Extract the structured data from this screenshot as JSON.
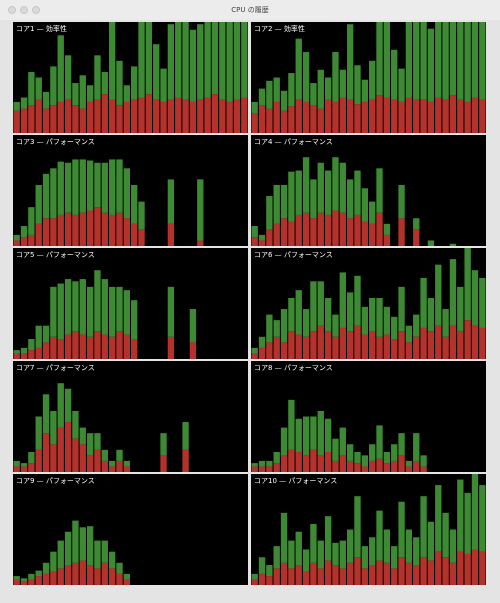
{
  "window": {
    "title": "CPU の履歴"
  },
  "colors": {
    "system": "#b3322b",
    "user": "#3e8a34"
  },
  "ylim": [
    0,
    100
  ],
  "panels": [
    {
      "title": "コア1 — 効率性",
      "system": [
        20,
        22,
        25,
        30,
        22,
        25,
        28,
        30,
        25,
        22,
        28,
        30,
        35,
        30,
        25,
        28,
        30,
        32,
        35,
        30,
        28,
        30,
        32,
        30,
        28,
        30,
        32,
        35,
        30,
        28,
        30,
        32
      ],
      "user": [
        8,
        10,
        30,
        20,
        15,
        35,
        60,
        40,
        20,
        30,
        15,
        40,
        20,
        70,
        40,
        15,
        30,
        68,
        65,
        50,
        30,
        68,
        68,
        70,
        65,
        68,
        68,
        65,
        70,
        72,
        70,
        68
      ]
    },
    {
      "title": "コア2 — 効率性",
      "system": [
        18,
        25,
        22,
        28,
        20,
        24,
        30,
        28,
        25,
        22,
        30,
        28,
        32,
        30,
        26,
        28,
        30,
        34,
        32,
        30,
        28,
        32,
        30,
        30,
        28,
        32,
        30,
        34,
        30,
        28,
        32,
        30
      ],
      "user": [
        10,
        15,
        25,
        22,
        18,
        30,
        55,
        45,
        20,
        35,
        20,
        45,
        25,
        68,
        35,
        20,
        35,
        66,
        68,
        45,
        30,
        68,
        70,
        70,
        66,
        68,
        70,
        66,
        70,
        72,
        68,
        70
      ]
    },
    {
      "title": "コア3 — パフォーマンス",
      "system": [
        5,
        8,
        10,
        20,
        25,
        25,
        28,
        30,
        28,
        30,
        32,
        35,
        30,
        28,
        30,
        25,
        20,
        15,
        0,
        0,
        0,
        20,
        0,
        0,
        0,
        5,
        0,
        0,
        0,
        0,
        0,
        0
      ],
      "user": [
        5,
        10,
        25,
        35,
        40,
        45,
        48,
        45,
        50,
        48,
        45,
        40,
        45,
        50,
        48,
        45,
        35,
        25,
        0,
        0,
        0,
        40,
        0,
        0,
        0,
        55,
        0,
        0,
        0,
        0,
        0,
        0
      ]
    },
    {
      "title": "コア4 — パフォーマンス",
      "system": [
        8,
        5,
        15,
        20,
        25,
        22,
        28,
        30,
        25,
        30,
        28,
        32,
        30,
        25,
        28,
        22,
        20,
        30,
        10,
        0,
        25,
        0,
        15,
        0,
        0,
        0,
        0,
        0,
        0,
        0,
        0,
        0
      ],
      "user": [
        10,
        5,
        30,
        35,
        30,
        45,
        40,
        50,
        35,
        45,
        40,
        48,
        45,
        35,
        40,
        30,
        20,
        40,
        10,
        0,
        30,
        0,
        10,
        0,
        5,
        0,
        0,
        2,
        0,
        0,
        0,
        0
      ],
      "extra": null
    },
    {
      "title": "コア5 — パフォーマンス",
      "system": [
        5,
        5,
        8,
        10,
        15,
        20,
        18,
        22,
        25,
        22,
        20,
        25,
        22,
        20,
        25,
        22,
        18,
        0,
        0,
        0,
        0,
        20,
        0,
        0,
        15,
        0,
        0,
        0,
        0,
        0,
        0,
        0
      ],
      "user": [
        3,
        5,
        10,
        20,
        15,
        45,
        50,
        50,
        45,
        50,
        45,
        55,
        50,
        45,
        40,
        40,
        35,
        0,
        0,
        0,
        0,
        45,
        0,
        0,
        30,
        0,
        0,
        0,
        0,
        0,
        0,
        0
      ]
    },
    {
      "title": "コア6 — パフォーマンス",
      "system": [
        5,
        10,
        15,
        20,
        15,
        25,
        22,
        20,
        25,
        30,
        25,
        20,
        28,
        25,
        30,
        22,
        25,
        20,
        22,
        18,
        25,
        15,
        20,
        28,
        25,
        30,
        20,
        30,
        25,
        35,
        30,
        28
      ],
      "user": [
        5,
        10,
        25,
        15,
        30,
        30,
        40,
        25,
        45,
        40,
        30,
        20,
        50,
        35,
        45,
        25,
        30,
        35,
        25,
        20,
        40,
        15,
        20,
        45,
        30,
        55,
        25,
        60,
        40,
        65,
        50,
        45
      ]
    },
    {
      "title": "コア7 — パフォーマンス",
      "system": [
        5,
        5,
        8,
        20,
        35,
        25,
        40,
        45,
        30,
        25,
        15,
        20,
        10,
        5,
        10,
        5,
        0,
        0,
        0,
        0,
        15,
        0,
        0,
        20,
        0,
        0,
        0,
        0,
        0,
        0,
        0,
        0
      ],
      "user": [
        5,
        3,
        10,
        30,
        35,
        30,
        40,
        30,
        25,
        15,
        20,
        15,
        10,
        5,
        10,
        5,
        0,
        0,
        0,
        0,
        20,
        0,
        0,
        25,
        0,
        0,
        0,
        0,
        0,
        0,
        0,
        0
      ]
    },
    {
      "title": "コア8 — パフォーマンス",
      "system": [
        5,
        5,
        5,
        8,
        15,
        20,
        18,
        15,
        20,
        15,
        18,
        10,
        15,
        10,
        8,
        5,
        10,
        12,
        8,
        10,
        15,
        5,
        10,
        5,
        0,
        0,
        0,
        0,
        0,
        0,
        0,
        0
      ],
      "user": [
        3,
        5,
        5,
        10,
        25,
        45,
        30,
        35,
        30,
        40,
        30,
        20,
        25,
        15,
        10,
        10,
        15,
        30,
        10,
        15,
        20,
        5,
        25,
        10,
        0,
        0,
        0,
        0,
        0,
        0,
        0,
        0
      ]
    },
    {
      "title": "コア9 — パフォーマンス",
      "system": [
        5,
        3,
        5,
        8,
        10,
        12,
        15,
        18,
        20,
        22,
        18,
        15,
        20,
        15,
        10,
        5,
        0,
        0,
        0,
        0,
        0,
        0,
        0,
        0,
        0,
        0,
        0,
        0,
        0,
        0,
        0,
        0
      ],
      "user": [
        3,
        3,
        5,
        5,
        10,
        18,
        25,
        30,
        38,
        30,
        35,
        25,
        20,
        15,
        10,
        5,
        0,
        0,
        0,
        0,
        0,
        0,
        0,
        0,
        0,
        0,
        0,
        0,
        0,
        0,
        0,
        0
      ]
    },
    {
      "title": "コア10 — パフォーマンス",
      "system": [
        5,
        10,
        8,
        15,
        20,
        15,
        18,
        12,
        20,
        15,
        22,
        18,
        15,
        20,
        25,
        15,
        18,
        22,
        20,
        15,
        25,
        20,
        18,
        25,
        22,
        30,
        25,
        20,
        30,
        28,
        32,
        30
      ],
      "user": [
        5,
        15,
        10,
        20,
        45,
        25,
        30,
        20,
        35,
        25,
        40,
        20,
        25,
        30,
        55,
        20,
        25,
        45,
        30,
        20,
        50,
        30,
        25,
        55,
        35,
        60,
        40,
        30,
        65,
        55,
        68,
        60
      ]
    }
  ]
}
